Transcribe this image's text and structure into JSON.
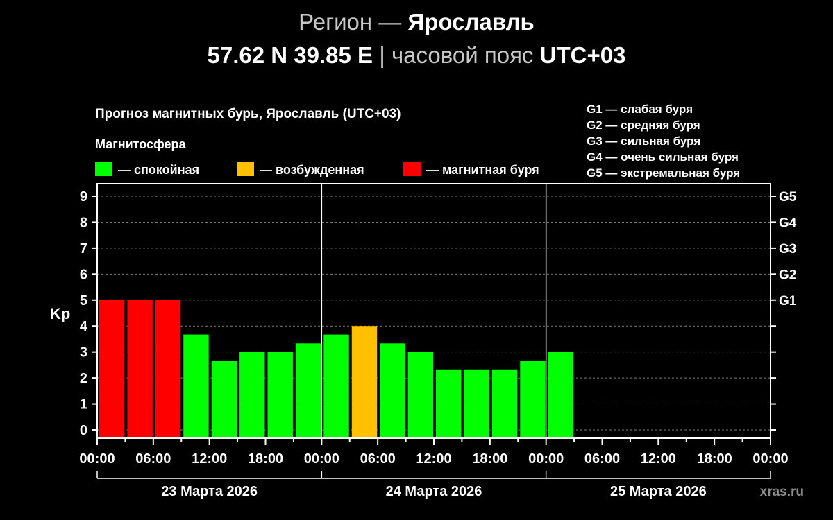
{
  "header": {
    "region_prefix": "Регион — ",
    "region_name": "Ярославль",
    "coordinates": "57.62 N 39.85 E",
    "separator": " | ",
    "tz_prefix": "часовой пояс ",
    "tz_value": "UTC+03"
  },
  "legend": {
    "section_label": "Магнитосфера",
    "items": [
      {
        "label": "— спокойная",
        "color": "#00ff00"
      },
      {
        "label": "— возбужденная",
        "color": "#ffc000"
      },
      {
        "label": "— магнитная буря",
        "color": "#ff0000"
      }
    ],
    "g_scale": [
      "G1 — слабая буря",
      "G2 — средняя буря",
      "G3 — сильная буря",
      "G4 — очень сильная буря",
      "G5 — экстремальная буря"
    ]
  },
  "watermark": "xras.ru",
  "chart_data": {
    "type": "bar",
    "title": "Прогноз магнитных бурь, Ярославль (UTC+03)",
    "ylabel": "Kp",
    "ylim": [
      0,
      9
    ],
    "yticks": [
      "0",
      "1",
      "2",
      "3",
      "4",
      "5",
      "6",
      "7",
      "8",
      "9"
    ],
    "right_ticks": [
      {
        "kp": 5,
        "label": "G1"
      },
      {
        "kp": 6,
        "label": "G2"
      },
      {
        "kp": 7,
        "label": "G3"
      },
      {
        "kp": 8,
        "label": "G4"
      },
      {
        "kp": 9,
        "label": "G5"
      }
    ],
    "grid": true,
    "x_tick_labels": [
      "00:00",
      "06:00",
      "12:00",
      "18:00",
      "00:00",
      "06:00",
      "12:00",
      "18:00",
      "00:00",
      "06:00",
      "12:00",
      "18:00",
      "00:00"
    ],
    "days": [
      "23 Марта 2026",
      "24 Марта 2026",
      "25 Марта 2026"
    ],
    "interval_hours": 3,
    "series": [
      {
        "values": [
          5,
          5,
          5,
          3.67,
          2.67,
          3,
          3,
          3.33,
          3.67,
          4,
          3.33,
          3,
          2.33,
          2.33,
          2.33,
          2.67,
          3
        ],
        "levels": [
          "storm",
          "storm",
          "storm",
          "quiet",
          "quiet",
          "quiet",
          "quiet",
          "quiet",
          "quiet",
          "active",
          "quiet",
          "quiet",
          "quiet",
          "quiet",
          "quiet",
          "quiet",
          "quiet"
        ]
      }
    ]
  }
}
